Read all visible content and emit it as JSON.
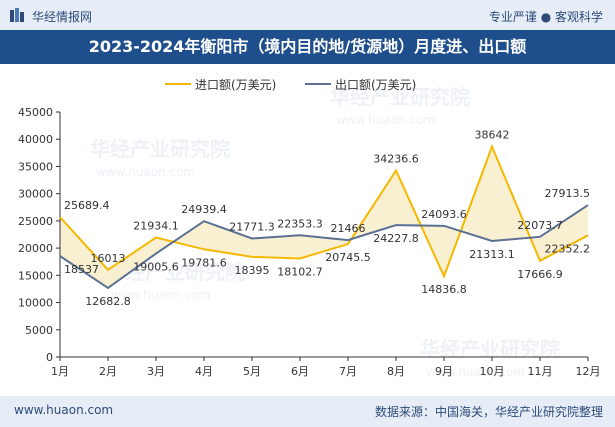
{
  "header": {
    "brand": "华经情报网",
    "slogan": "专业严谨 ● 客观科学"
  },
  "footer": {
    "url": "www.huaon.com",
    "source": "数据来源：中国海关，华经产业研究院整理"
  },
  "watermark": "华经产业研究院",
  "watermark_url": "www.huaon.com",
  "colors": {
    "import": "#f5b800",
    "export": "#5a6f93",
    "fill": "#f7edc9",
    "header_bg": "#1f4e8c"
  },
  "chart_data": {
    "type": "line",
    "title": "2023-2024年衡阳市（境内目的地/货源地）月度进、出口额",
    "categories": [
      "1月",
      "2月",
      "3月",
      "4月",
      "5月",
      "6月",
      "7月",
      "8月",
      "9月",
      "10月",
      "11月",
      "12月"
    ],
    "series": [
      {
        "name": "进口额(万美元)",
        "values": [
          25689.4,
          16013,
          21934.1,
          19781.6,
          18395,
          18102.7,
          20745.5,
          34236.6,
          14836.8,
          38642,
          17666.9,
          22352.2
        ],
        "labels": [
          "25689.4",
          "16013",
          "21934.1",
          "19781.6",
          "18395",
          "18102.7",
          "20745.5",
          "34236.6",
          "14836.8",
          "38642",
          "17666.9",
          "22352.2"
        ]
      },
      {
        "name": "出口额(万美元)",
        "values": [
          18537,
          12682.8,
          19005.6,
          24939.4,
          21771.3,
          22353.3,
          21466,
          24227.8,
          24093.6,
          21313.1,
          22073.7,
          27913.5
        ],
        "labels": [
          "18537",
          "12682.8",
          "19005.6",
          "24939.4",
          "21771.3",
          "22353.3",
          "21466",
          "24227.8",
          "24093.6",
          "21313.1",
          "22073.7",
          "27913.5"
        ]
      }
    ],
    "ylim": [
      0,
      45000
    ],
    "yticks": [
      0,
      5000,
      10000,
      15000,
      20000,
      25000,
      30000,
      35000,
      40000,
      45000
    ],
    "legend": "top-center",
    "grid": false
  }
}
